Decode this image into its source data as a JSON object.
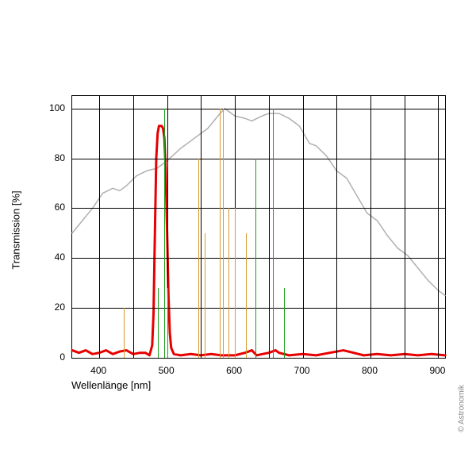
{
  "chart": {
    "type": "line",
    "xlabel": "Wellenlänge [nm]",
    "ylabel": "Transmission [%]",
    "copyright": "© Astronomik",
    "watermark": "Astronomik",
    "background_color": "#ffffff",
    "grid_color": "#000000",
    "label_fontsize": 13,
    "tick_fontsize": 12,
    "xlim": [
      360,
      910
    ],
    "ylim": [
      0,
      105
    ],
    "xticks": [
      400,
      500,
      600,
      700,
      800,
      900
    ],
    "yticks": [
      0,
      20,
      40,
      60,
      80,
      100
    ],
    "grid_x": [
      400,
      450,
      500,
      550,
      600,
      650,
      700,
      750,
      800,
      850,
      900
    ],
    "grid_y": [
      0,
      20,
      40,
      60,
      80,
      100
    ],
    "emission_lines": {
      "orange": {
        "color": "#d99a2b",
        "width": 1,
        "lines": [
          {
            "x": 436,
            "h": 20
          },
          {
            "x": 546,
            "h": 80
          },
          {
            "x": 555,
            "h": 50
          },
          {
            "x": 578,
            "h": 100
          },
          {
            "x": 582,
            "h": 100
          },
          {
            "x": 590,
            "h": 60
          },
          {
            "x": 600,
            "h": 60
          },
          {
            "x": 616,
            "h": 50
          }
        ]
      },
      "green": {
        "color": "#1a9e1a",
        "width": 1,
        "lines": [
          {
            "x": 486,
            "h": 28
          },
          {
            "x": 496,
            "h": 100
          },
          {
            "x": 501,
            "h": 28
          },
          {
            "x": 630,
            "h": 80
          },
          {
            "x": 656,
            "h": 100
          },
          {
            "x": 672,
            "h": 28
          }
        ]
      }
    },
    "series_gray": {
      "color": "#b0b0b0",
      "width": 1.5,
      "points": [
        [
          360,
          50
        ],
        [
          375,
          55
        ],
        [
          390,
          60
        ],
        [
          405,
          66
        ],
        [
          420,
          68
        ],
        [
          430,
          67
        ],
        [
          440,
          69
        ],
        [
          455,
          73
        ],
        [
          470,
          75
        ],
        [
          485,
          76
        ],
        [
          500,
          79
        ],
        [
          520,
          84
        ],
        [
          535,
          87
        ],
        [
          550,
          90
        ],
        [
          560,
          92
        ],
        [
          575,
          97
        ],
        [
          585,
          100
        ],
        [
          600,
          97
        ],
        [
          615,
          96
        ],
        [
          625,
          95
        ],
        [
          640,
          97
        ],
        [
          650,
          98
        ],
        [
          665,
          98
        ],
        [
          680,
          96
        ],
        [
          695,
          93
        ],
        [
          710,
          86
        ],
        [
          720,
          85
        ],
        [
          735,
          81
        ],
        [
          750,
          75
        ],
        [
          765,
          72
        ],
        [
          780,
          65
        ],
        [
          795,
          58
        ],
        [
          810,
          55
        ],
        [
          825,
          49
        ],
        [
          840,
          44
        ],
        [
          855,
          41
        ],
        [
          870,
          36
        ],
        [
          885,
          31
        ],
        [
          900,
          27
        ],
        [
          910,
          25
        ]
      ]
    },
    "series_red": {
      "color": "#e60000",
      "width": 3,
      "points": [
        [
          360,
          3
        ],
        [
          370,
          2
        ],
        [
          380,
          3
        ],
        [
          390,
          1.5
        ],
        [
          400,
          2
        ],
        [
          410,
          3
        ],
        [
          420,
          1.5
        ],
        [
          430,
          2.5
        ],
        [
          440,
          3
        ],
        [
          450,
          1.5
        ],
        [
          460,
          2
        ],
        [
          468,
          2
        ],
        [
          474,
          1
        ],
        [
          478,
          5
        ],
        [
          480,
          18
        ],
        [
          482,
          50
        ],
        [
          484,
          80
        ],
        [
          486,
          90
        ],
        [
          488,
          93
        ],
        [
          490,
          93
        ],
        [
          492,
          93
        ],
        [
          494,
          92
        ],
        [
          496,
          88
        ],
        [
          498,
          75
        ],
        [
          500,
          50
        ],
        [
          502,
          25
        ],
        [
          504,
          10
        ],
        [
          506,
          4
        ],
        [
          510,
          1.5
        ],
        [
          520,
          1
        ],
        [
          535,
          1.5
        ],
        [
          550,
          1
        ],
        [
          565,
          1.5
        ],
        [
          580,
          1
        ],
        [
          600,
          1
        ],
        [
          615,
          2
        ],
        [
          625,
          3
        ],
        [
          632,
          1
        ],
        [
          650,
          2
        ],
        [
          660,
          3
        ],
        [
          665,
          2
        ],
        [
          680,
          1
        ],
        [
          700,
          1.5
        ],
        [
          720,
          1
        ],
        [
          740,
          2
        ],
        [
          760,
          3
        ],
        [
          775,
          2
        ],
        [
          790,
          1
        ],
        [
          810,
          1.5
        ],
        [
          830,
          1
        ],
        [
          850,
          1.5
        ],
        [
          870,
          1
        ],
        [
          890,
          1.5
        ],
        [
          910,
          1
        ]
      ]
    }
  }
}
